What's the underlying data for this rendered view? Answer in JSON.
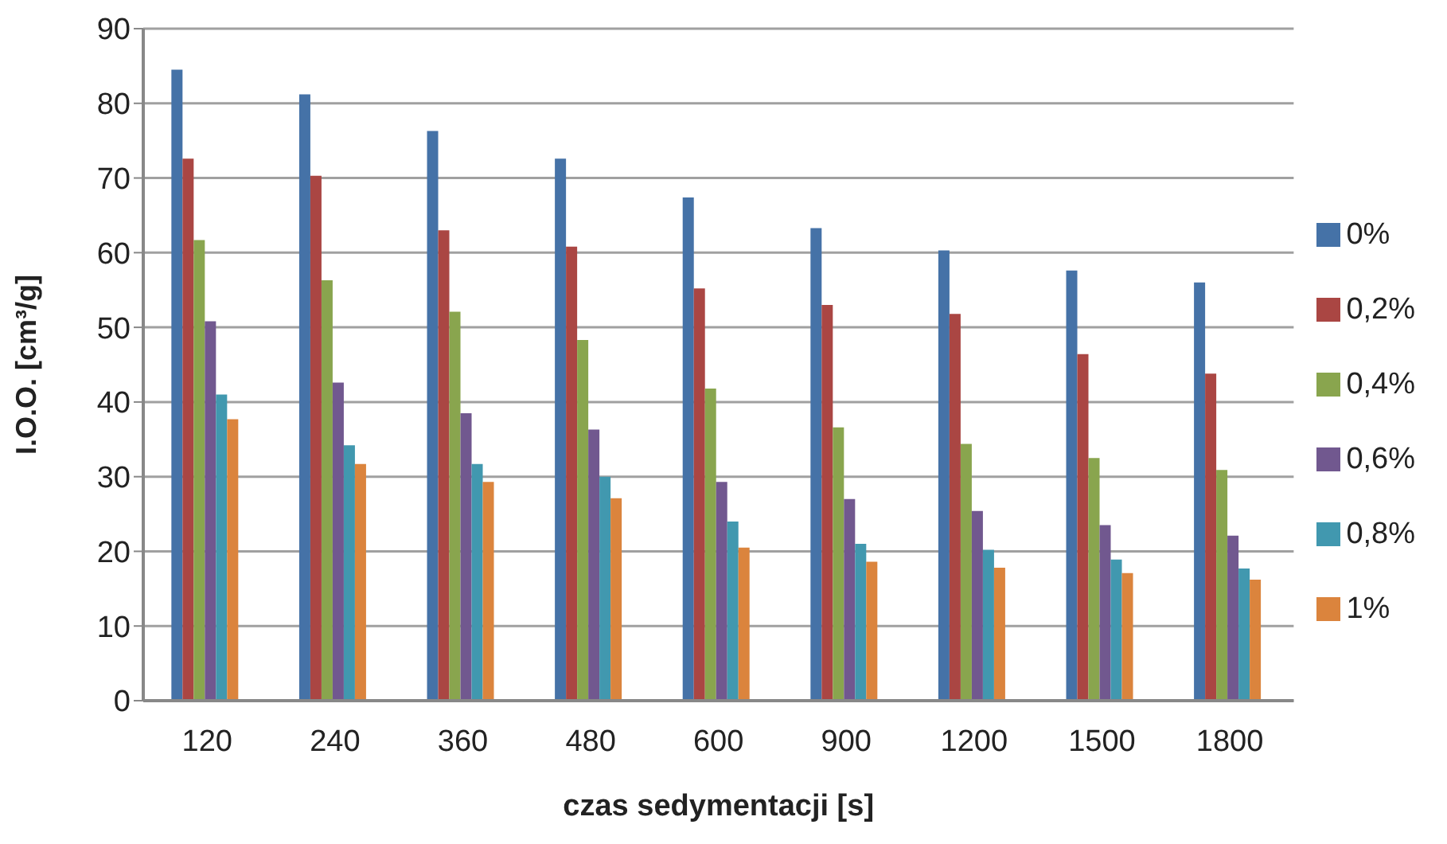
{
  "chart_data": {
    "type": "bar",
    "xlabel": "czas sedymentacji [s]",
    "ylabel": "I.O.O. [cm³/g]",
    "categories": [
      "120",
      "240",
      "360",
      "480",
      "600",
      "900",
      "1200",
      "1500",
      "1800"
    ],
    "series": [
      {
        "name": "0%",
        "color": "#4572a7",
        "values": [
          84.5,
          81.2,
          76.3,
          72.6,
          67.4,
          63.3,
          60.3,
          57.6,
          56
        ]
      },
      {
        "name": "0,2%",
        "color": "#aa4643",
        "values": [
          72.6,
          70.3,
          63,
          60.8,
          55.2,
          53,
          51.8,
          46.4,
          43.8
        ]
      },
      {
        "name": "0,4%",
        "color": "#89a54e",
        "values": [
          61.7,
          56.3,
          52.1,
          48.3,
          41.8,
          36.6,
          34.4,
          32.5,
          30.9
        ]
      },
      {
        "name": "0,6%",
        "color": "#71588f",
        "values": [
          50.8,
          42.6,
          38.5,
          36.3,
          29.3,
          27,
          25.4,
          23.5,
          22.1
        ]
      },
      {
        "name": "0,8%",
        "color": "#4198af",
        "values": [
          41,
          34.2,
          31.7,
          30,
          24,
          21,
          20.2,
          18.9,
          17.7
        ]
      },
      {
        "name": "1%",
        "color": "#db843d",
        "values": [
          37.7,
          31.7,
          29.3,
          27.1,
          20.5,
          18.6,
          17.8,
          17.1,
          16.2
        ]
      }
    ],
    "ylim": [
      0,
      90
    ],
    "yticks": [
      0,
      10,
      20,
      30,
      40,
      50,
      60,
      70,
      80,
      90
    ],
    "grid": "y",
    "legend": "right"
  }
}
